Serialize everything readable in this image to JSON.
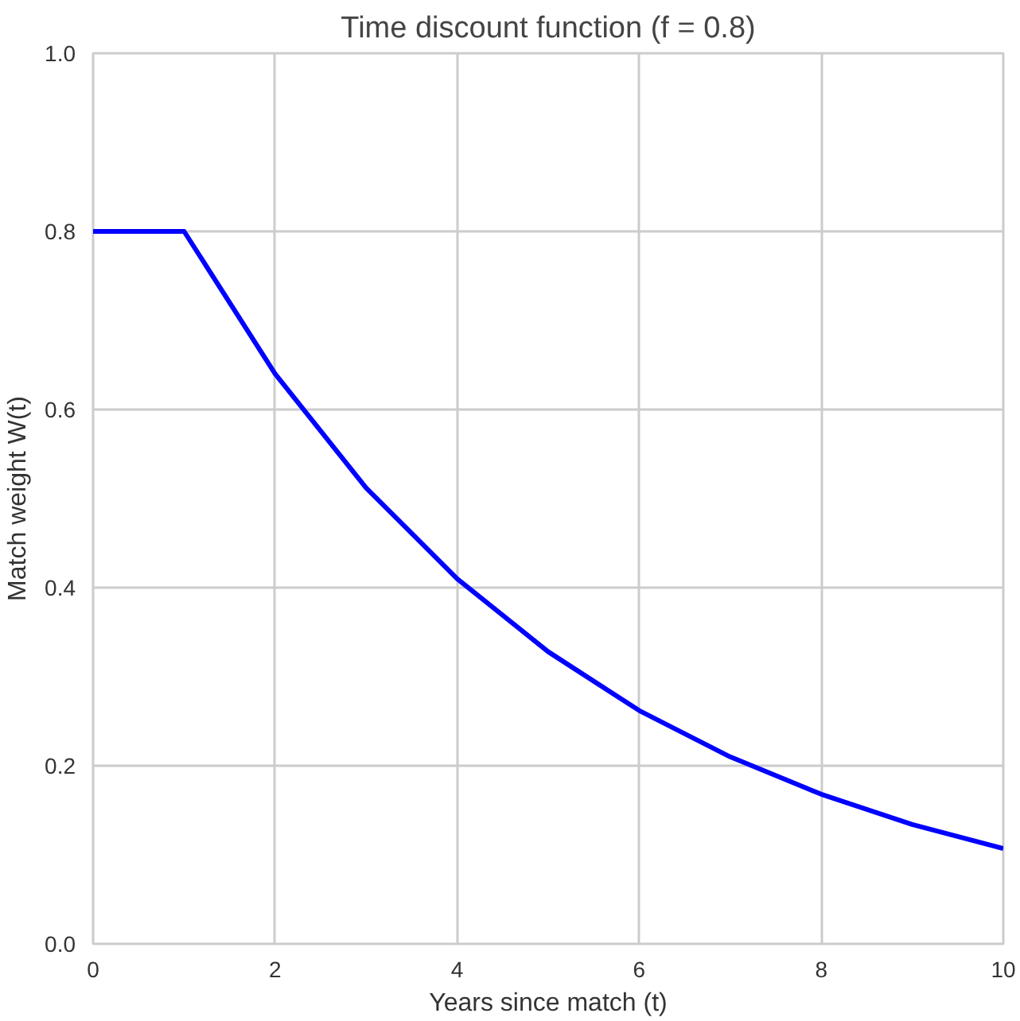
{
  "chart_data": {
    "type": "line",
    "title": "Time discount function (f = 0.8)",
    "xlabel": "Years since match (t)",
    "ylabel": "Match weight W(t)",
    "x": [
      0,
      1,
      2,
      3,
      4,
      5,
      6,
      7,
      8,
      9,
      10
    ],
    "series": [
      {
        "color": "#0000ff",
        "values": [
          0.8,
          0.8,
          0.64,
          0.512,
          0.41,
          0.328,
          0.262,
          0.21,
          0.168,
          0.134,
          0.107
        ]
      }
    ],
    "xlim": [
      0,
      10
    ],
    "ylim": [
      0,
      1
    ],
    "xticks": [
      0,
      2,
      4,
      6,
      8,
      10
    ],
    "yticks": [
      {
        "value": 0,
        "label": "0.0"
      },
      0.2,
      0.4,
      0.6,
      0.8,
      {
        "value": 1,
        "label": "1.0"
      }
    ],
    "grid": true,
    "line_style": "solid"
  }
}
